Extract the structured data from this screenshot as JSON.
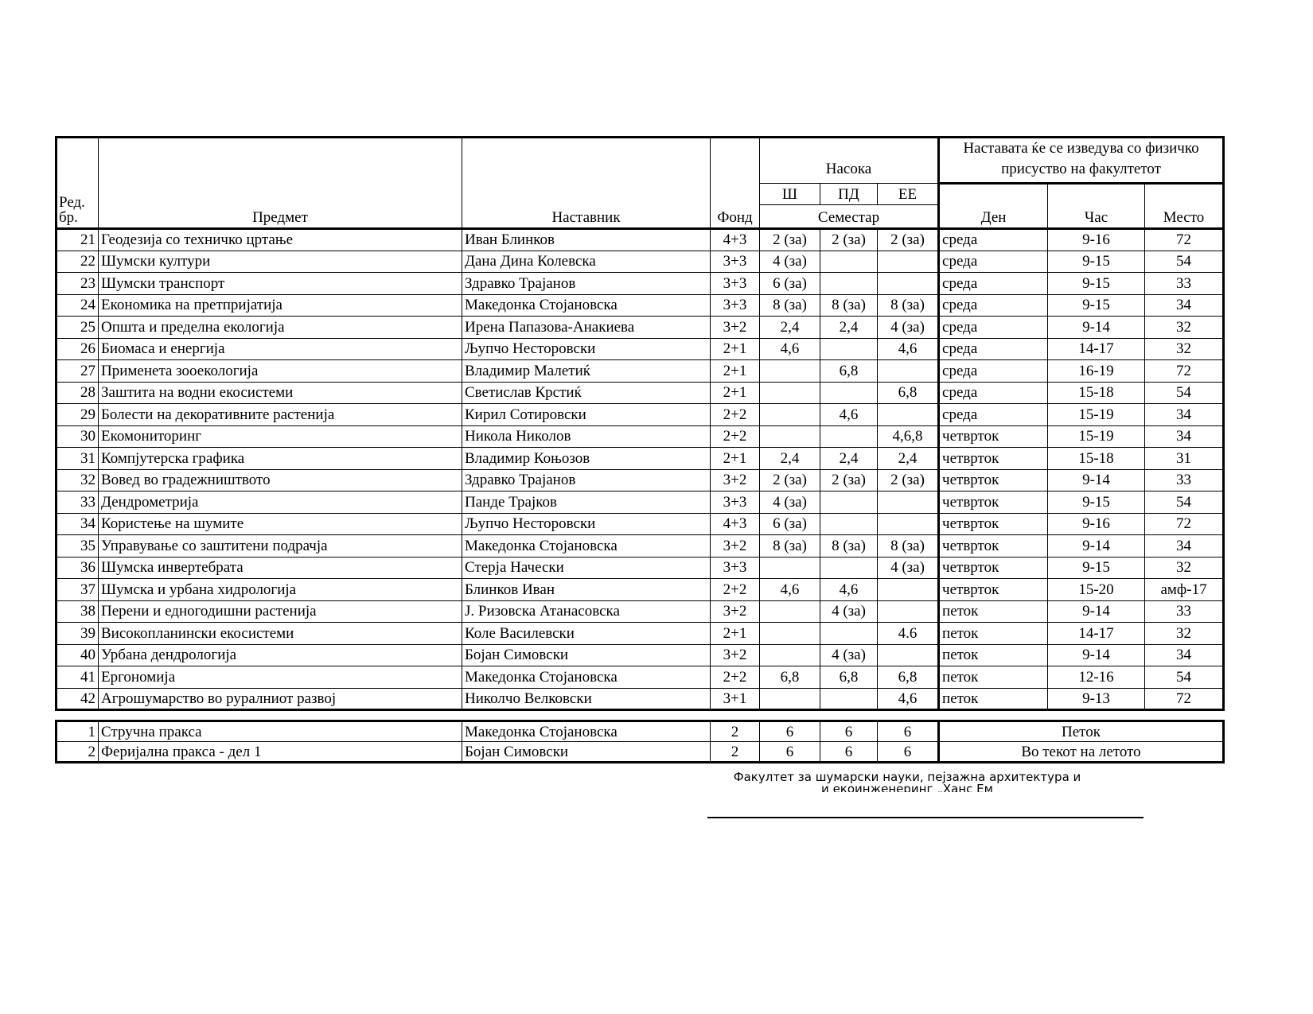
{
  "header": {
    "no": "Ред. бр.",
    "subject": "Предмет",
    "teacher": "Наставник",
    "fund": "Фонд",
    "direction": "Насока",
    "directions": [
      "Ш",
      "ПД",
      "ЕЕ"
    ],
    "semester": "Семестар",
    "presence": "Наставата ќе се изведува со физичко присуство на факултетот",
    "day": "Ден",
    "hour": "Час",
    "place": "Место"
  },
  "rows": [
    {
      "no": "21",
      "subject": "Геодезија со техничко цртање",
      "teacher": "Иван Блинков",
      "fund": "4+3",
      "sh": "2 (за)",
      "pd": "2 (за)",
      "ee": "2 (за)",
      "day": "среда",
      "hour": "9-16",
      "place": "72"
    },
    {
      "no": "22",
      "subject": "Шумски култури",
      "teacher": "Дана Дина Колевска",
      "fund": "3+3",
      "sh": "4 (за)",
      "pd": "",
      "ee": "",
      "day": "среда",
      "hour": "9-15",
      "place": "54"
    },
    {
      "no": "23",
      "subject": "Шумски транспорт",
      "teacher": "Здравко Трајанов",
      "fund": "3+3",
      "sh": "6 (за)",
      "pd": "",
      "ee": "",
      "day": "среда",
      "hour": "9-15",
      "place": "33"
    },
    {
      "no": "24",
      "subject": "Економика на претпријатија",
      "teacher": "Македонка Стојановска",
      "fund": "3+3",
      "sh": "8 (за)",
      "pd": "8 (за)",
      "ee": "8 (за)",
      "day": "среда",
      "hour": "9-15",
      "place": "34"
    },
    {
      "no": "25",
      "subject": "Општа и пределна екологија",
      "teacher": "Ирена Папазова-Анакиева",
      "fund": "3+2",
      "sh": "2,4",
      "pd": "2,4",
      "ee": "4 (за)",
      "day": "среда",
      "hour": "9-14",
      "place": "32"
    },
    {
      "no": "26",
      "subject": "Биомаса и енергија",
      "teacher": "Љупчо Несторовски",
      "fund": "2+1",
      "sh": "4,6",
      "pd": "",
      "ee": "4,6",
      "day": "среда",
      "hour": "14-17",
      "place": "32"
    },
    {
      "no": "27",
      "subject": "Применета зооекологија",
      "teacher": "Владимир Малетиќ",
      "fund": "2+1",
      "sh": "",
      "pd": "6,8",
      "ee": "",
      "day": "среда",
      "hour": "16-19",
      "place": "72"
    },
    {
      "no": "28",
      "subject": "Заштита на водни екосистеми",
      "teacher": "Светислав Крстиќ",
      "fund": "2+1",
      "sh": "",
      "pd": "",
      "ee": "6,8",
      "day": "среда",
      "hour": "15-18",
      "place": "54"
    },
    {
      "no": "29",
      "subject": "Болести на декоративните растенија",
      "teacher": "Кирил Сотировски",
      "fund": "2+2",
      "sh": "",
      "pd": "4,6",
      "ee": "",
      "day": "среда",
      "hour": "15-19",
      "place": "34"
    },
    {
      "no": "30",
      "subject": "Екомониторинг",
      "teacher": "Никола Николов",
      "fund": "2+2",
      "sh": "",
      "pd": "",
      "ee": "4,6,8",
      "day": "четврток",
      "hour": "15-19",
      "place": "34"
    },
    {
      "no": "31",
      "subject": "Компјутерска графика",
      "teacher": "Владимир Коњозов",
      "fund": "2+1",
      "sh": "2,4",
      "pd": "2,4",
      "ee": "2,4",
      "day": "четврток",
      "hour": "15-18",
      "place": "31"
    },
    {
      "no": "32",
      "subject": "Вовед во градежништвото",
      "teacher": "Здравко Трајанов",
      "fund": "3+2",
      "sh": "2 (за)",
      "pd": "2 (за)",
      "ee": "2 (за)",
      "day": "четврток",
      "hour": "9-14",
      "place": "33"
    },
    {
      "no": "33",
      "subject": "Дендрометрија",
      "teacher": "Панде Трајков",
      "fund": "3+3",
      "sh": "4 (за)",
      "pd": "",
      "ee": "",
      "day": "четврток",
      "hour": "9-15",
      "place": "54"
    },
    {
      "no": "34",
      "subject": "Користење на шумите",
      "teacher": "Љупчо Несторовски",
      "fund": "4+3",
      "sh": "6 (за)",
      "pd": "",
      "ee": "",
      "day": "четврток",
      "hour": "9-16",
      "place": "72"
    },
    {
      "no": "35",
      "subject": "Управување со заштитени подрачја",
      "teacher": "Македонка Стојановска",
      "fund": "3+2",
      "sh": "8 (за)",
      "pd": "8 (за)",
      "ee": "8 (за)",
      "day": "четврток",
      "hour": "9-14",
      "place": "34"
    },
    {
      "no": "36",
      "subject": "Шумска инвертебрата",
      "teacher": "Стерја Начески",
      "fund": "3+3",
      "sh": "",
      "pd": "",
      "ee": "4 (за)",
      "day": "четврток",
      "hour": "9-15",
      "place": "32"
    },
    {
      "no": "37",
      "subject": "Шумска и урбана хидрологија",
      "teacher": "Блинков Иван",
      "fund": "2+2",
      "sh": "4,6",
      "pd": "4,6",
      "ee": "",
      "day": "четврток",
      "hour": "15-20",
      "place": "амф-17"
    },
    {
      "no": "38",
      "subject": "Перени и едногодишни растенија",
      "teacher": "Ј. Ризовска Атанасовска",
      "fund": "3+2",
      "sh": "",
      "pd": "4 (за)",
      "ee": "",
      "day": "петок",
      "hour": "9-14",
      "place": "33"
    },
    {
      "no": "39",
      "subject": "Високопланински екосистеми",
      "teacher": "Коле Василевски",
      "fund": "2+1",
      "sh": "",
      "pd": "",
      "ee": "4.6",
      "day": "петок",
      "hour": "14-17",
      "place": "32"
    },
    {
      "no": "40",
      "subject": "Урбана дендрологија",
      "teacher": "Бојан Симовски",
      "fund": "3+2",
      "sh": "",
      "pd": "4 (за)",
      "ee": "",
      "day": "петок",
      "hour": "9-14",
      "place": "34"
    },
    {
      "no": "41",
      "subject": "Ергономија",
      "teacher": "Македонка Стојановска",
      "fund": "2+2",
      "sh": "6,8",
      "pd": "6,8",
      "ee": "6,8",
      "day": "петок",
      "hour": "12-16",
      "place": "54"
    },
    {
      "no": "42",
      "subject": "Агрошумарство во руралниот развој",
      "teacher": "Николчо Велковски",
      "fund": "3+1",
      "sh": "",
      "pd": "",
      "ee": "4,6",
      "day": "петок",
      "hour": "9-13",
      "place": "72"
    }
  ],
  "practice": [
    {
      "no": "1",
      "subject": "Стручна пракса",
      "teacher": "Македонка Стојановска",
      "fund": "2",
      "sh": "6",
      "pd": "6",
      "ee": "6",
      "when": "Петок"
    },
    {
      "no": "2",
      "subject": "Феријална пракса - дел 1",
      "teacher": "Бојан Симовски",
      "fund": "2",
      "sh": "6",
      "pd": "6",
      "ee": "6",
      "when": "Во текот на летото"
    }
  ],
  "footer": {
    "line1": "Факултет за шумарски науки, пејзажна архитектура и",
    "line2": "и екоинженеринг „Ханс Ем"
  }
}
